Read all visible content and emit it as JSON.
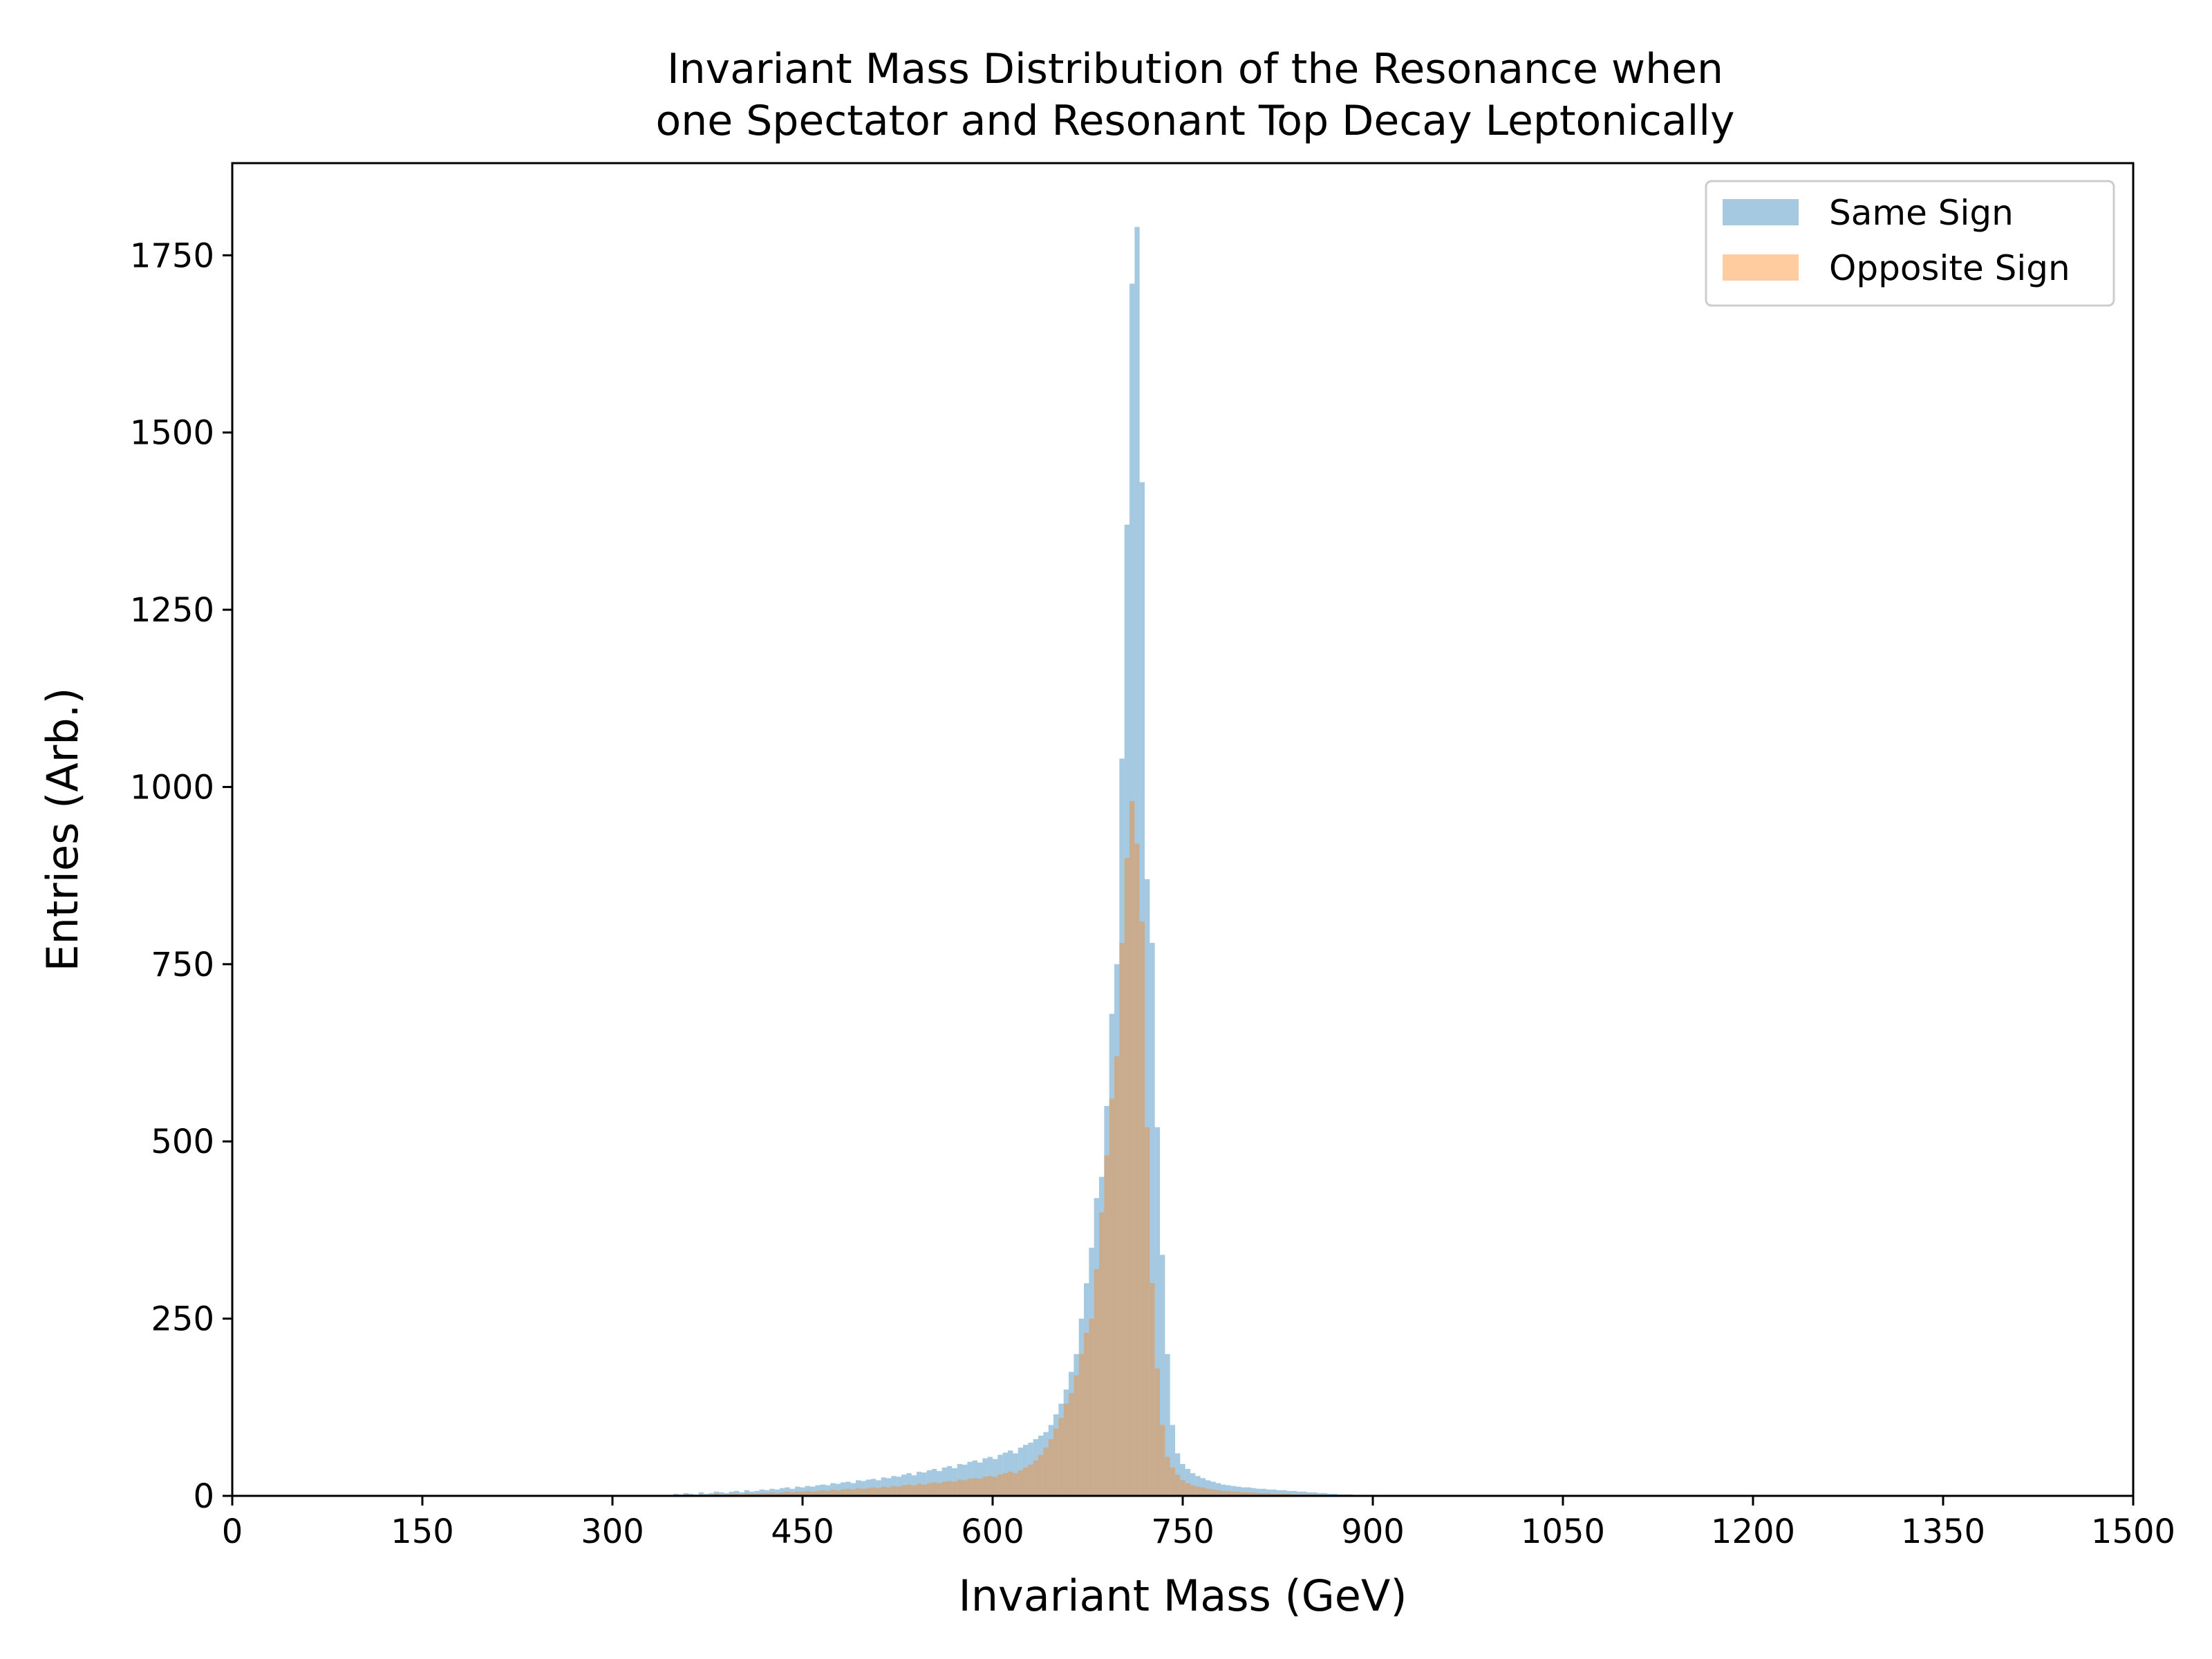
{
  "chart_data": {
    "type": "histogram",
    "title_lines": [
      "Invariant Mass Distribution of the Resonance when",
      "one Spectator and Resonant Top Decay Leptonically"
    ],
    "xlabel": "Invariant Mass (GeV)",
    "ylabel": "Entries (Arb.)",
    "xlim": [
      0,
      1500
    ],
    "ylim": [
      0,
      1880
    ],
    "xticks": [
      "0",
      "150",
      "300",
      "450",
      "600",
      "750",
      "900",
      "1050",
      "1200",
      "1350",
      "1500"
    ],
    "xtick_values": [
      0,
      150,
      300,
      450,
      600,
      750,
      900,
      1050,
      1200,
      1350,
      1500
    ],
    "yticks": [
      "0",
      "250",
      "500",
      "750",
      "1000",
      "1250",
      "1500",
      "1750"
    ],
    "ytick_values": [
      0,
      250,
      500,
      750,
      1000,
      1250,
      1500,
      1750
    ],
    "grid": false,
    "legend_position": "top-right",
    "bin_width": 4,
    "series": [
      {
        "name": "Same Sign",
        "color": "#1f77b4",
        "alpha": 0.4,
        "x_start": 348,
        "values": [
          3,
          2,
          4,
          3,
          2,
          5,
          3,
          4,
          6,
          5,
          4,
          6,
          7,
          5,
          8,
          6,
          7,
          9,
          8,
          10,
          9,
          11,
          12,
          10,
          13,
          12,
          14,
          13,
          15,
          16,
          15,
          18,
          17,
          19,
          20,
          18,
          22,
          21,
          23,
          24,
          22,
          26,
          25,
          28,
          27,
          30,
          32,
          29,
          34,
          33,
          36,
          38,
          35,
          40,
          42,
          39,
          45,
          44,
          48,
          50,
          47,
          53,
          55,
          52,
          58,
          61,
          64,
          60,
          68,
          72,
          75,
          80,
          85,
          90,
          100,
          115,
          130,
          150,
          175,
          200,
          250,
          300,
          350,
          420,
          450,
          550,
          680,
          750,
          1040,
          1370,
          1710,
          1790,
          1430,
          870,
          780,
          520,
          340,
          200,
          100,
          60,
          45,
          38,
          32,
          28,
          25,
          22,
          20,
          18,
          16,
          15,
          14,
          13,
          12,
          12,
          11,
          10,
          10,
          9,
          9,
          8,
          8,
          7,
          7,
          6,
          6,
          5,
          5,
          4,
          4,
          3,
          3,
          2,
          2,
          2,
          1,
          1
        ]
      },
      {
        "name": "Opposite Sign",
        "color": "#ff7f0e",
        "alpha": 0.4,
        "x_start": 348,
        "values": [
          1,
          1,
          2,
          1,
          1,
          2,
          1,
          2,
          3,
          2,
          2,
          3,
          3,
          2,
          4,
          3,
          3,
          4,
          4,
          5,
          4,
          5,
          6,
          5,
          6,
          6,
          7,
          6,
          7,
          8,
          7,
          9,
          8,
          9,
          10,
          9,
          11,
          10,
          11,
          12,
          11,
          13,
          12,
          14,
          13,
          15,
          16,
          15,
          17,
          16,
          18,
          19,
          18,
          20,
          21,
          20,
          23,
          22,
          24,
          25,
          24,
          27,
          28,
          27,
          30,
          32,
          34,
          32,
          36,
          40,
          44,
          50,
          58,
          68,
          80,
          95,
          110,
          130,
          145,
          170,
          200,
          230,
          250,
          320,
          400,
          480,
          560,
          620,
          780,
          900,
          980,
          920,
          810,
          520,
          300,
          180,
          100,
          55,
          40,
          30,
          22,
          18,
          15,
          13,
          12,
          10,
          9,
          8,
          7,
          7,
          6,
          6,
          5,
          5,
          5,
          4,
          4,
          4,
          3,
          3,
          3,
          3,
          2,
          2,
          2,
          2,
          2,
          1,
          1,
          1,
          1,
          1,
          1,
          1,
          1,
          1,
          0,
          0
        ]
      }
    ]
  }
}
